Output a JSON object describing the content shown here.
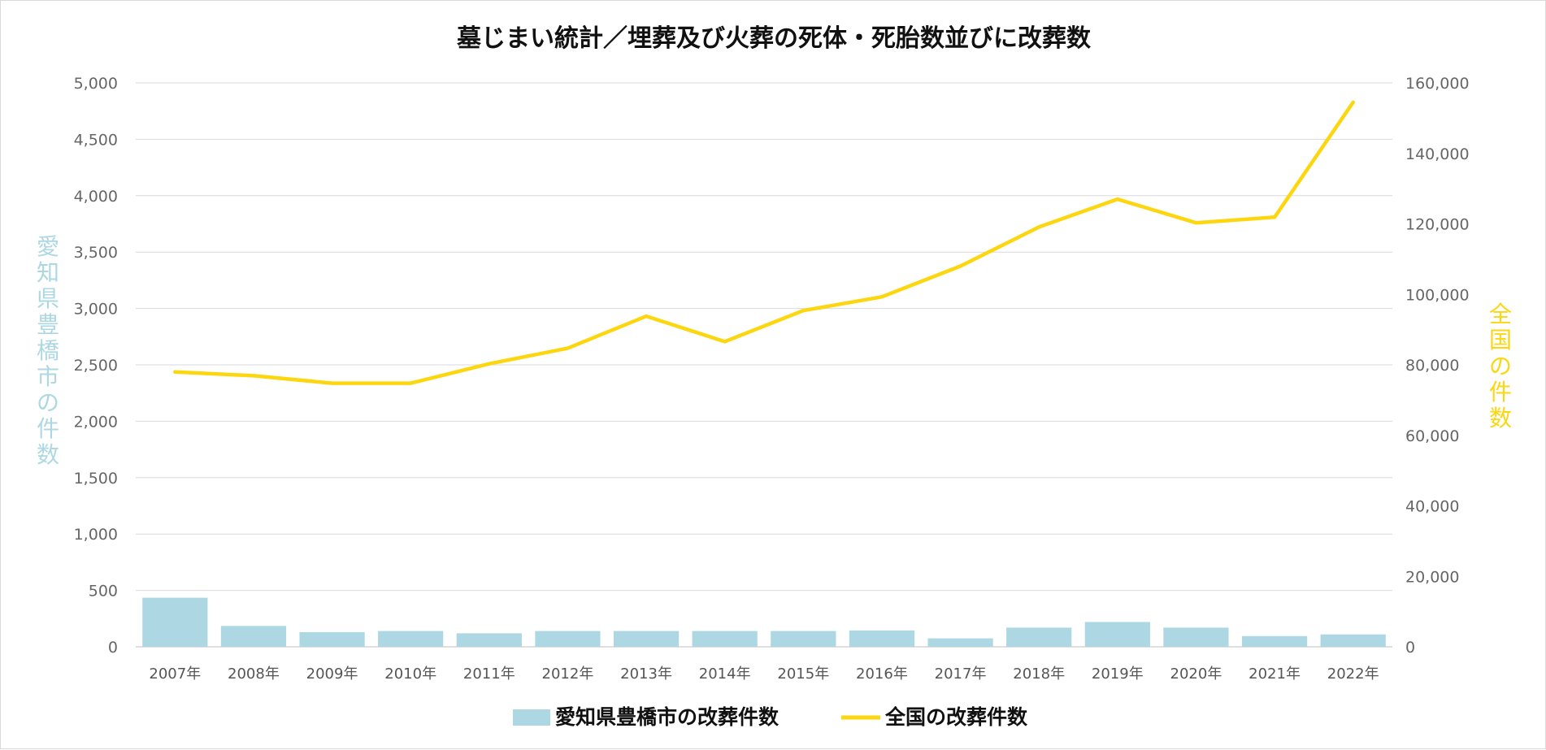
{
  "chart_data": {
    "type": "bar",
    "title": "墓じまい統計／埋葬及び火葬の死体・死胎数並びに改葬数",
    "categories": [
      "2007年",
      "2008年",
      "2009年",
      "2010年",
      "2011年",
      "2012年",
      "2013年",
      "2014年",
      "2015年",
      "2016年",
      "2017年",
      "2018年",
      "2019年",
      "2020年",
      "2021年",
      "2022年"
    ],
    "ylabel_left": "愛知県豊橋市の件数",
    "ylabel_right": "全国の件数",
    "ylim_left": [
      0,
      5000
    ],
    "ylim_right": [
      0,
      160000
    ],
    "yticks_left": [
      "0",
      "500",
      "1,000",
      "1,500",
      "2,000",
      "2,500",
      "3,000",
      "3,500",
      "4,000",
      "4,500",
      "5,000"
    ],
    "yticks_right": [
      "0",
      "20,000",
      "40,000",
      "60,000",
      "80,000",
      "100,000",
      "120,000",
      "140,000",
      "160,000"
    ],
    "grid": true,
    "legend_position": "bottom",
    "series": [
      {
        "name": "愛知県豊橋市の改葬件数",
        "type": "bar",
        "axis": "left",
        "color": "#add8e3",
        "values": [
          435,
          185,
          130,
          140,
          120,
          140,
          140,
          140,
          140,
          145,
          75,
          170,
          220,
          170,
          95,
          110
        ]
      },
      {
        "name": "全国の改葬件数",
        "type": "line",
        "axis": "right",
        "color": "#fcd60f",
        "values": [
          78000,
          76900,
          74800,
          74800,
          80300,
          84700,
          93800,
          86600,
          95400,
          99300,
          108000,
          119100,
          127000,
          120300,
          121900,
          154500
        ]
      }
    ]
  }
}
